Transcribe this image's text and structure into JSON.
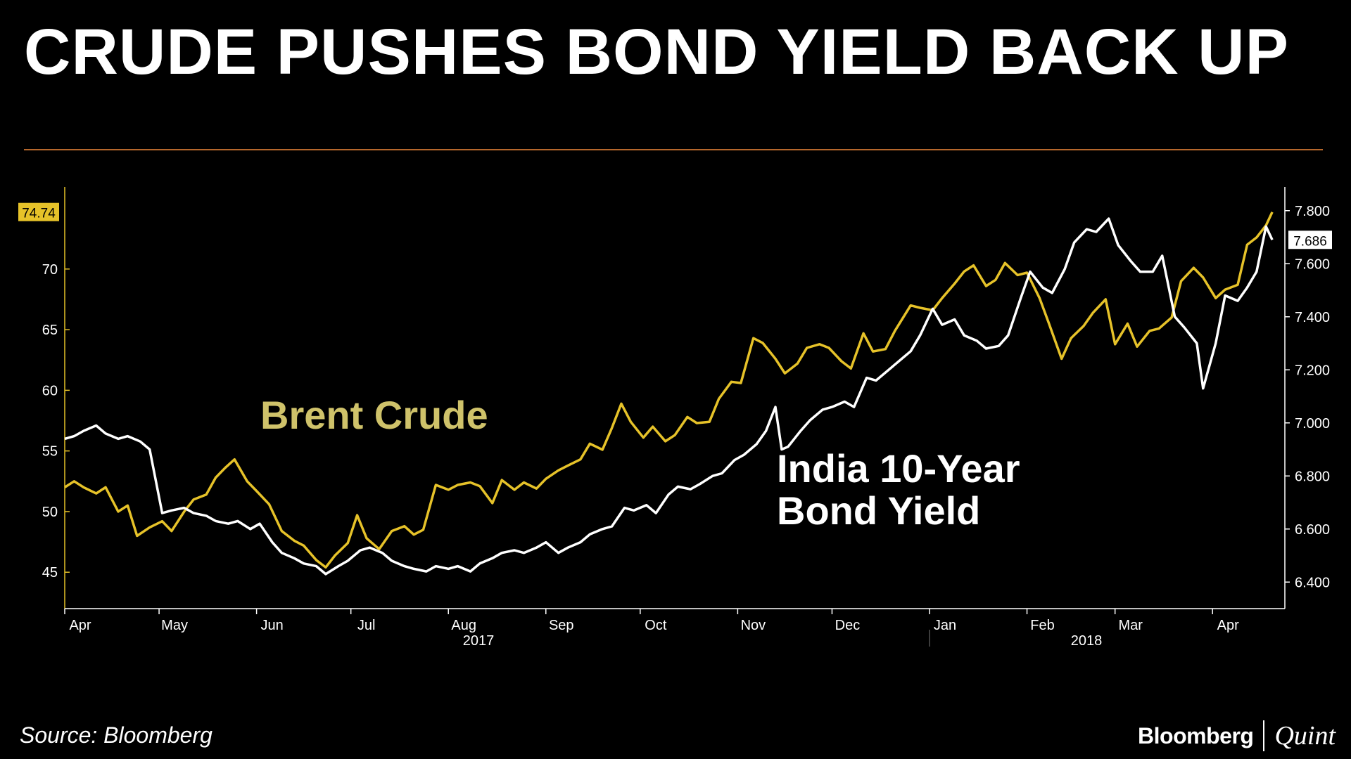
{
  "title": "CRUDE PUSHES BOND YIELD BACK UP",
  "source": "Source: Bloomberg",
  "brand": {
    "primary": "Bloomberg",
    "secondary": "Quint"
  },
  "colors": {
    "background": "#000000",
    "crude": "#e6c229",
    "yield": "#ffffff",
    "rule": "#b5672c",
    "label_crude": "#cfc26a"
  },
  "chart_data": {
    "type": "line",
    "x_months": [
      "Apr",
      "May",
      "Jun",
      "Jul",
      "Aug",
      "Sep",
      "Oct",
      "Nov",
      "Dec",
      "Jan",
      "Feb",
      "Mar",
      "Apr"
    ],
    "x_years": [
      "2017",
      "2018"
    ],
    "y_left": {
      "ylim": [
        42,
        77
      ],
      "ticks": [
        45,
        50,
        55,
        60,
        65,
        70
      ]
    },
    "y_right": {
      "ylim": [
        6.3,
        7.9
      ],
      "ticks": [
        "6.400",
        "6.600",
        "6.800",
        "7.000",
        "7.200",
        "7.400",
        "7.600",
        "7.800"
      ]
    },
    "series": [
      {
        "name": "Brent Crude",
        "axis": "left",
        "last_label": "74.74",
        "points": [
          [
            "2017-04-01",
            52.0
          ],
          [
            "2017-04-04",
            52.5
          ],
          [
            "2017-04-07",
            52.0
          ],
          [
            "2017-04-11",
            51.5
          ],
          [
            "2017-04-14",
            52.0
          ],
          [
            "2017-04-18",
            50.0
          ],
          [
            "2017-04-21",
            50.5
          ],
          [
            "2017-04-24",
            48.0
          ],
          [
            "2017-04-28",
            48.7
          ],
          [
            "2017-05-02",
            49.2
          ],
          [
            "2017-05-05",
            48.4
          ],
          [
            "2017-05-09",
            50.0
          ],
          [
            "2017-05-12",
            51.0
          ],
          [
            "2017-05-16",
            51.4
          ],
          [
            "2017-05-19",
            52.8
          ],
          [
            "2017-05-22",
            53.6
          ],
          [
            "2017-05-25",
            54.3
          ],
          [
            "2017-05-29",
            52.5
          ],
          [
            "2017-06-01",
            51.7
          ],
          [
            "2017-06-05",
            50.6
          ],
          [
            "2017-06-09",
            48.4
          ],
          [
            "2017-06-13",
            47.6
          ],
          [
            "2017-06-16",
            47.2
          ],
          [
            "2017-06-20",
            46.0
          ],
          [
            "2017-06-23",
            45.4
          ],
          [
            "2017-06-26",
            46.4
          ],
          [
            "2017-06-30",
            47.4
          ],
          [
            "2017-07-03",
            49.7
          ],
          [
            "2017-07-06",
            47.8
          ],
          [
            "2017-07-10",
            46.9
          ],
          [
            "2017-07-14",
            48.4
          ],
          [
            "2017-07-18",
            48.8
          ],
          [
            "2017-07-21",
            48.1
          ],
          [
            "2017-07-24",
            48.5
          ],
          [
            "2017-07-28",
            52.2
          ],
          [
            "2017-08-01",
            51.8
          ],
          [
            "2017-08-04",
            52.2
          ],
          [
            "2017-08-08",
            52.4
          ],
          [
            "2017-08-11",
            52.1
          ],
          [
            "2017-08-15",
            50.7
          ],
          [
            "2017-08-18",
            52.6
          ],
          [
            "2017-08-22",
            51.8
          ],
          [
            "2017-08-25",
            52.4
          ],
          [
            "2017-08-29",
            51.9
          ],
          [
            "2017-09-01",
            52.7
          ],
          [
            "2017-09-05",
            53.4
          ],
          [
            "2017-09-08",
            53.8
          ],
          [
            "2017-09-12",
            54.3
          ],
          [
            "2017-09-15",
            55.6
          ],
          [
            "2017-09-19",
            55.1
          ],
          [
            "2017-09-22",
            56.9
          ],
          [
            "2017-09-25",
            58.9
          ],
          [
            "2017-09-28",
            57.4
          ],
          [
            "2017-10-02",
            56.1
          ],
          [
            "2017-10-05",
            57.0
          ],
          [
            "2017-10-09",
            55.8
          ],
          [
            "2017-10-12",
            56.3
          ],
          [
            "2017-10-16",
            57.8
          ],
          [
            "2017-10-19",
            57.3
          ],
          [
            "2017-10-23",
            57.4
          ],
          [
            "2017-10-26",
            59.3
          ],
          [
            "2017-10-30",
            60.7
          ],
          [
            "2017-11-02",
            60.6
          ],
          [
            "2017-11-06",
            64.3
          ],
          [
            "2017-11-09",
            63.9
          ],
          [
            "2017-11-13",
            62.6
          ],
          [
            "2017-11-16",
            61.4
          ],
          [
            "2017-11-20",
            62.2
          ],
          [
            "2017-11-23",
            63.5
          ],
          [
            "2017-11-27",
            63.8
          ],
          [
            "2017-11-30",
            63.5
          ],
          [
            "2017-12-04",
            62.4
          ],
          [
            "2017-12-07",
            61.8
          ],
          [
            "2017-12-11",
            64.7
          ],
          [
            "2017-12-14",
            63.2
          ],
          [
            "2017-12-18",
            63.4
          ],
          [
            "2017-12-21",
            64.9
          ],
          [
            "2017-12-26",
            67.0
          ],
          [
            "2017-12-29",
            66.8
          ],
          [
            "2018-01-02",
            66.6
          ],
          [
            "2018-01-05",
            67.6
          ],
          [
            "2018-01-09",
            68.8
          ],
          [
            "2018-01-12",
            69.8
          ],
          [
            "2018-01-15",
            70.3
          ],
          [
            "2018-01-19",
            68.6
          ],
          [
            "2018-01-22",
            69.1
          ],
          [
            "2018-01-25",
            70.5
          ],
          [
            "2018-01-29",
            69.5
          ],
          [
            "2018-02-01",
            69.7
          ],
          [
            "2018-02-05",
            67.6
          ],
          [
            "2018-02-08",
            65.5
          ],
          [
            "2018-02-12",
            62.6
          ],
          [
            "2018-02-15",
            64.3
          ],
          [
            "2018-02-19",
            65.3
          ],
          [
            "2018-02-22",
            66.4
          ],
          [
            "2018-02-26",
            67.5
          ],
          [
            "2018-03-01",
            63.8
          ],
          [
            "2018-03-05",
            65.5
          ],
          [
            "2018-03-08",
            63.6
          ],
          [
            "2018-03-12",
            64.9
          ],
          [
            "2018-03-15",
            65.1
          ],
          [
            "2018-03-19",
            66.0
          ],
          [
            "2018-03-22",
            69.0
          ],
          [
            "2018-03-26",
            70.1
          ],
          [
            "2018-03-29",
            69.3
          ],
          [
            "2018-04-02",
            67.6
          ],
          [
            "2018-04-05",
            68.3
          ],
          [
            "2018-04-09",
            68.7
          ],
          [
            "2018-04-12",
            72.0
          ],
          [
            "2018-04-15",
            72.6
          ],
          [
            "2018-04-18",
            73.6
          ],
          [
            "2018-04-20",
            74.7
          ]
        ]
      },
      {
        "name": "India 10-Year Bond Yield",
        "axis": "right",
        "last_label": "7.686",
        "points": [
          [
            "2017-04-01",
            6.94
          ],
          [
            "2017-04-04",
            6.95
          ],
          [
            "2017-04-07",
            6.97
          ],
          [
            "2017-04-11",
            6.99
          ],
          [
            "2017-04-14",
            6.96
          ],
          [
            "2017-04-18",
            6.94
          ],
          [
            "2017-04-21",
            6.95
          ],
          [
            "2017-04-25",
            6.93
          ],
          [
            "2017-04-28",
            6.9
          ],
          [
            "2017-05-02",
            6.66
          ],
          [
            "2017-05-05",
            6.67
          ],
          [
            "2017-05-09",
            6.68
          ],
          [
            "2017-05-12",
            6.66
          ],
          [
            "2017-05-16",
            6.65
          ],
          [
            "2017-05-19",
            6.63
          ],
          [
            "2017-05-23",
            6.62
          ],
          [
            "2017-05-26",
            6.63
          ],
          [
            "2017-05-30",
            6.6
          ],
          [
            "2017-06-02",
            6.62
          ],
          [
            "2017-06-06",
            6.55
          ],
          [
            "2017-06-09",
            6.51
          ],
          [
            "2017-06-13",
            6.49
          ],
          [
            "2017-06-16",
            6.47
          ],
          [
            "2017-06-20",
            6.46
          ],
          [
            "2017-06-23",
            6.43
          ],
          [
            "2017-06-27",
            6.46
          ],
          [
            "2017-06-30",
            6.48
          ],
          [
            "2017-07-04",
            6.52
          ],
          [
            "2017-07-07",
            6.53
          ],
          [
            "2017-07-11",
            6.51
          ],
          [
            "2017-07-14",
            6.48
          ],
          [
            "2017-07-18",
            6.46
          ],
          [
            "2017-07-21",
            6.45
          ],
          [
            "2017-07-25",
            6.44
          ],
          [
            "2017-07-28",
            6.46
          ],
          [
            "2017-08-01",
            6.45
          ],
          [
            "2017-08-04",
            6.46
          ],
          [
            "2017-08-08",
            6.44
          ],
          [
            "2017-08-11",
            6.47
          ],
          [
            "2017-08-15",
            6.49
          ],
          [
            "2017-08-18",
            6.51
          ],
          [
            "2017-08-22",
            6.52
          ],
          [
            "2017-08-25",
            6.51
          ],
          [
            "2017-08-29",
            6.53
          ],
          [
            "2017-09-01",
            6.55
          ],
          [
            "2017-09-05",
            6.51
          ],
          [
            "2017-09-08",
            6.53
          ],
          [
            "2017-09-12",
            6.55
          ],
          [
            "2017-09-15",
            6.58
          ],
          [
            "2017-09-19",
            6.6
          ],
          [
            "2017-09-22",
            6.61
          ],
          [
            "2017-09-26",
            6.68
          ],
          [
            "2017-09-29",
            6.67
          ],
          [
            "2017-10-03",
            6.69
          ],
          [
            "2017-10-06",
            6.66
          ],
          [
            "2017-10-10",
            6.73
          ],
          [
            "2017-10-13",
            6.76
          ],
          [
            "2017-10-17",
            6.75
          ],
          [
            "2017-10-20",
            6.77
          ],
          [
            "2017-10-24",
            6.8
          ],
          [
            "2017-10-27",
            6.81
          ],
          [
            "2017-10-31",
            6.86
          ],
          [
            "2017-11-03",
            6.88
          ],
          [
            "2017-11-07",
            6.92
          ],
          [
            "2017-11-10",
            6.97
          ],
          [
            "2017-11-13",
            7.06
          ],
          [
            "2017-11-15",
            6.9
          ],
          [
            "2017-11-17",
            6.91
          ],
          [
            "2017-11-21",
            6.97
          ],
          [
            "2017-11-24",
            7.01
          ],
          [
            "2017-11-28",
            7.05
          ],
          [
            "2017-12-01",
            7.06
          ],
          [
            "2017-12-05",
            7.08
          ],
          [
            "2017-12-08",
            7.06
          ],
          [
            "2017-12-12",
            7.17
          ],
          [
            "2017-12-15",
            7.16
          ],
          [
            "2017-12-19",
            7.2
          ],
          [
            "2017-12-22",
            7.23
          ],
          [
            "2017-12-26",
            7.27
          ],
          [
            "2017-12-29",
            7.33
          ],
          [
            "2018-01-02",
            7.43
          ],
          [
            "2018-01-05",
            7.37
          ],
          [
            "2018-01-09",
            7.39
          ],
          [
            "2018-01-12",
            7.33
          ],
          [
            "2018-01-16",
            7.31
          ],
          [
            "2018-01-19",
            7.28
          ],
          [
            "2018-01-23",
            7.29
          ],
          [
            "2018-01-26",
            7.33
          ],
          [
            "2018-01-30",
            7.47
          ],
          [
            "2018-02-02",
            7.57
          ],
          [
            "2018-02-06",
            7.51
          ],
          [
            "2018-02-09",
            7.49
          ],
          [
            "2018-02-13",
            7.58
          ],
          [
            "2018-02-16",
            7.68
          ],
          [
            "2018-02-20",
            7.73
          ],
          [
            "2018-02-23",
            7.72
          ],
          [
            "2018-02-27",
            7.77
          ],
          [
            "2018-03-02",
            7.67
          ],
          [
            "2018-03-06",
            7.61
          ],
          [
            "2018-03-09",
            7.57
          ],
          [
            "2018-03-13",
            7.57
          ],
          [
            "2018-03-16",
            7.63
          ],
          [
            "2018-03-20",
            7.4
          ],
          [
            "2018-03-23",
            7.36
          ],
          [
            "2018-03-27",
            7.3
          ],
          [
            "2018-03-29",
            7.13
          ],
          [
            "2018-04-02",
            7.3
          ],
          [
            "2018-04-05",
            7.48
          ],
          [
            "2018-04-09",
            7.46
          ],
          [
            "2018-04-12",
            7.51
          ],
          [
            "2018-04-15",
            7.57
          ],
          [
            "2018-04-18",
            7.74
          ],
          [
            "2018-04-20",
            7.69
          ]
        ]
      }
    ],
    "annotations": [
      {
        "text": "Brent Crude",
        "series": "Brent Crude"
      },
      {
        "text": "India 10-Year\nBond Yield",
        "series": "India 10-Year Bond Yield"
      }
    ]
  }
}
